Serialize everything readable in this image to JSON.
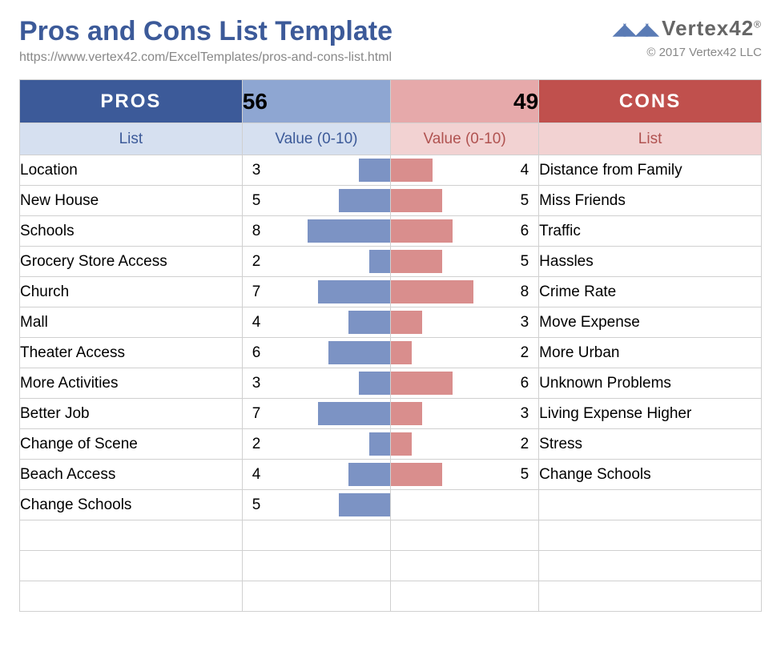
{
  "title": "Pros and Cons List Template",
  "url": "https://www.vertex42.com/ExcelTemplates/pros-and-cons-list.html",
  "logo_text": "Vertex42",
  "copyright": "© 2017 Vertex42 LLC",
  "colors": {
    "pros_header_bg": "#3c5a99",
    "pros_total_bg": "#8ea6d2",
    "pros_sub_bg": "#d6e0f0",
    "pros_sub_fg": "#3c5a99",
    "pros_bar": "#7c93c4",
    "cons_header_bg": "#c0504d",
    "cons_total_bg": "#e6a9aa",
    "cons_sub_bg": "#f2d2d2",
    "cons_sub_fg": "#b05250",
    "cons_bar": "#d98e8d",
    "border": "#d0d0d0",
    "title_fg": "#3c5a99",
    "muted_fg": "#888888"
  },
  "headers": {
    "pros": "PROS",
    "cons": "CONS",
    "list": "List",
    "value": "Value (0-10)"
  },
  "value_max": 10,
  "pros_total": 56,
  "cons_total": 49,
  "row_count": 15,
  "pros": [
    {
      "label": "Location",
      "value": 3
    },
    {
      "label": "New House",
      "value": 5
    },
    {
      "label": "Schools",
      "value": 8
    },
    {
      "label": "Grocery Store Access",
      "value": 2
    },
    {
      "label": "Church",
      "value": 7
    },
    {
      "label": "Mall",
      "value": 4
    },
    {
      "label": "Theater Access",
      "value": 6
    },
    {
      "label": "More Activities",
      "value": 3
    },
    {
      "label": "Better Job",
      "value": 7
    },
    {
      "label": "Change of Scene",
      "value": 2
    },
    {
      "label": "Beach Access",
      "value": 4
    },
    {
      "label": "Change Schools",
      "value": 5
    }
  ],
  "cons": [
    {
      "label": "Distance from Family",
      "value": 4
    },
    {
      "label": "Miss Friends",
      "value": 5
    },
    {
      "label": "Traffic",
      "value": 6
    },
    {
      "label": "Hassles",
      "value": 5
    },
    {
      "label": "Crime Rate",
      "value": 8
    },
    {
      "label": "Move Expense",
      "value": 3
    },
    {
      "label": "More Urban",
      "value": 2
    },
    {
      "label": "Unknown Problems",
      "value": 6
    },
    {
      "label": "Living Expense Higher",
      "value": 3
    },
    {
      "label": "Stress",
      "value": 2
    },
    {
      "label": "Change Schools",
      "value": 5
    }
  ]
}
